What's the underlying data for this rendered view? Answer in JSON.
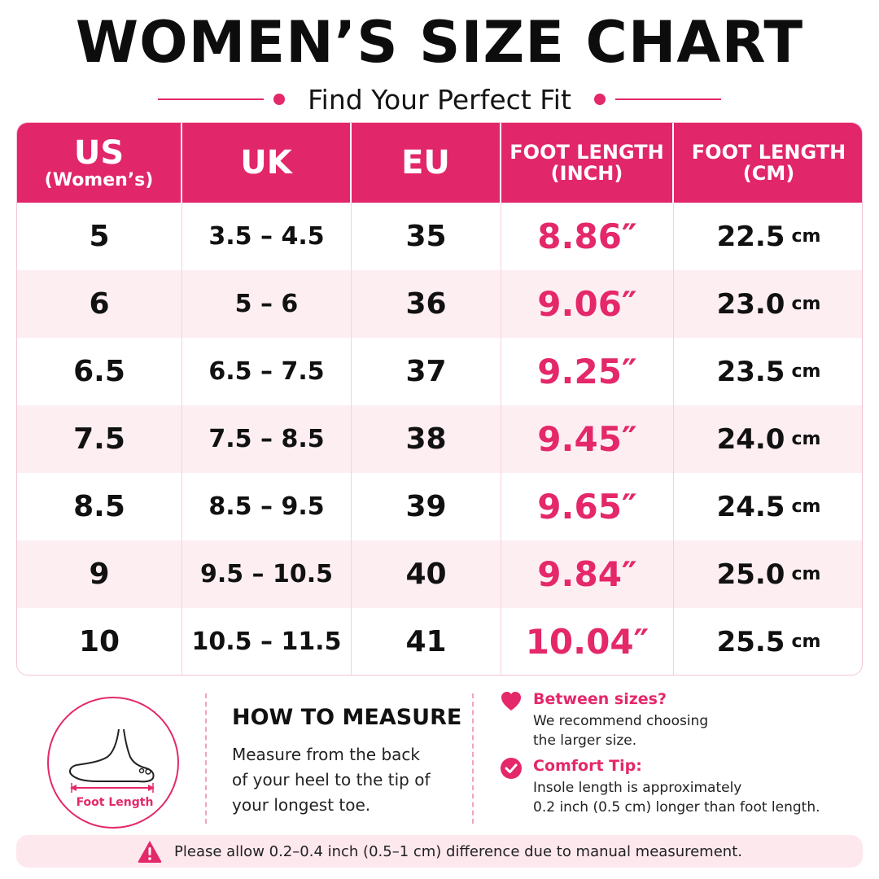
{
  "title": "WOMEN’S SIZE CHART",
  "subtitle": "Find Your Perfect Fit",
  "colors": {
    "accent": "#e4286a",
    "header_bg": "#e2266a",
    "row_alt": "#fdeef2"
  },
  "table": {
    "headers": {
      "us": {
        "main": "US",
        "sub": "(Women’s)"
      },
      "uk": "UK",
      "eu": "EU",
      "inch": {
        "line1": "FOOT LENGTH",
        "line2": "(INCH)"
      },
      "cm": {
        "line1": "FOOT LENGTH",
        "line2": "(CM)"
      }
    },
    "rows": [
      {
        "us": "5",
        "uk": "3.5 – 4.5",
        "eu": "35",
        "inch": "8.86″",
        "cm": "22.5",
        "cm_unit": "cm"
      },
      {
        "us": "6",
        "uk": "5 – 6",
        "eu": "36",
        "inch": "9.06″",
        "cm": "23.0",
        "cm_unit": "cm"
      },
      {
        "us": "6.5",
        "uk": "6.5 – 7.5",
        "eu": "37",
        "inch": "9.25″",
        "cm": "23.5",
        "cm_unit": "cm"
      },
      {
        "us": "7.5",
        "uk": "7.5 – 8.5",
        "eu": "38",
        "inch": "9.45″",
        "cm": "24.0",
        "cm_unit": "cm"
      },
      {
        "us": "8.5",
        "uk": "8.5 – 9.5",
        "eu": "39",
        "inch": "9.65″",
        "cm": "24.5",
        "cm_unit": "cm"
      },
      {
        "us": "9",
        "uk": "9.5 – 10.5",
        "eu": "40",
        "inch": "9.84″",
        "cm": "25.0",
        "cm_unit": "cm"
      },
      {
        "us": "10",
        "uk": "10.5 – 11.5",
        "eu": "41",
        "inch": "10.04″",
        "cm": "25.5",
        "cm_unit": "cm"
      }
    ]
  },
  "measure": {
    "icon": "foot-icon",
    "label": "Foot Length",
    "title": "HOW TO MEASURE",
    "text_lines": [
      "Measure from the back",
      "of your heel to the tip of",
      "your longest toe."
    ]
  },
  "tips": {
    "between": {
      "icon": "heart-icon",
      "title": "Between sizes?",
      "lines": [
        "We recommend choosing",
        "the larger size."
      ]
    },
    "comfort": {
      "icon": "check-circle-icon",
      "title": "Comfort Tip:",
      "lines": [
        "Insole length is approximately",
        "0.2 inch (0.5 cm) longer than foot length."
      ]
    }
  },
  "notice": {
    "icon": "warning-icon",
    "text": "Please allow 0.2–0.4 inch (0.5–1 cm) difference due to manual measurement."
  }
}
